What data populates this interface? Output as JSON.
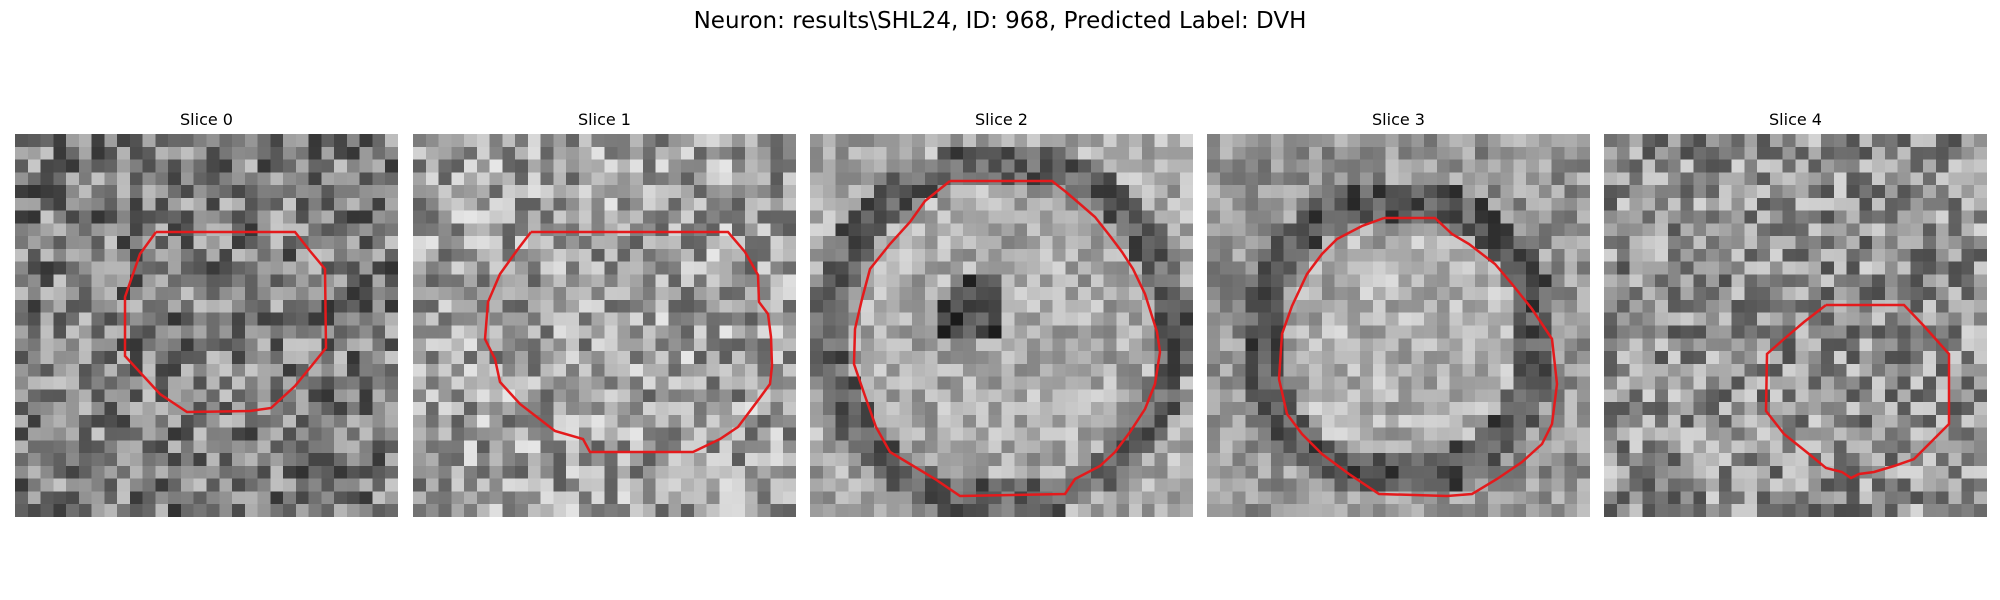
{
  "figure": {
    "title": "Neuron: results\\SHL24, ID: 968, Predicted Label: DVH"
  },
  "panels": [
    {
      "label": "Slice 0"
    },
    {
      "label": "Slice 1"
    },
    {
      "label": "Slice 2"
    },
    {
      "label": "Slice 3"
    },
    {
      "label": "Slice 4"
    }
  ],
  "contour_color": "#e41a1c",
  "colormap": "gray"
}
